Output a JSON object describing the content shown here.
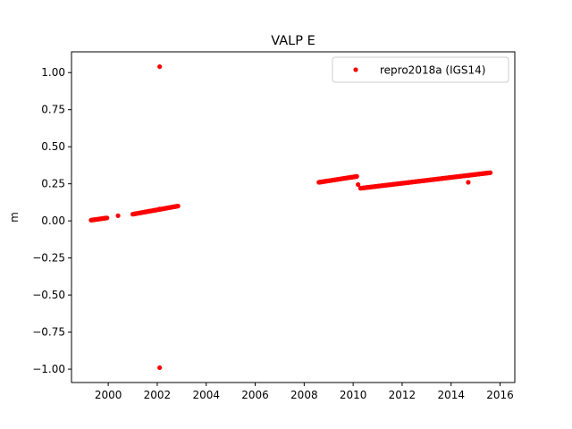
{
  "chart_data": {
    "type": "scatter",
    "title": "VALP E",
    "xlabel": "",
    "ylabel": "m",
    "xlim": [
      1998.5,
      2016.6
    ],
    "ylim": [
      -1.09,
      1.14
    ],
    "xticks": [
      2000,
      2002,
      2004,
      2006,
      2008,
      2010,
      2012,
      2014,
      2016
    ],
    "xtick_labels": [
      "2000",
      "2002",
      "2004",
      "2006",
      "2008",
      "2010",
      "2012",
      "2014",
      "2016"
    ],
    "yticks": [
      -1.0,
      -0.75,
      -0.5,
      -0.25,
      0.0,
      0.25,
      0.5,
      0.75,
      1.0
    ],
    "ytick_labels": [
      "−1.00",
      "−0.75",
      "−0.50",
      "−0.25",
      "0.00",
      "0.25",
      "0.50",
      "0.75",
      "1.00"
    ],
    "grid": false,
    "legend_position": "top-right",
    "colors": {
      "series": "#ff0000"
    },
    "series": [
      {
        "name": "repro2018a (IGS14)",
        "segments": [
          {
            "x_start": 1999.3,
            "x_end": 1999.95,
            "y_start": 0.005,
            "y_end": 0.02
          },
          {
            "x_start": 2001.0,
            "x_end": 2002.85,
            "y_start": 0.045,
            "y_end": 0.1
          },
          {
            "x_start": 2008.6,
            "x_end": 2010.15,
            "y_start": 0.26,
            "y_end": 0.3
          },
          {
            "x_start": 2010.3,
            "x_end": 2015.6,
            "y_start": 0.22,
            "y_end": 0.325
          }
        ],
        "points": [
          {
            "x": 2000.4,
            "y": 0.035
          },
          {
            "x": 2002.1,
            "y": 1.04
          },
          {
            "x": 2002.1,
            "y": -0.99
          },
          {
            "x": 2002.1,
            "y": 0.08
          },
          {
            "x": 2010.2,
            "y": 0.245
          },
          {
            "x": 2014.7,
            "y": 0.26
          }
        ]
      }
    ]
  }
}
